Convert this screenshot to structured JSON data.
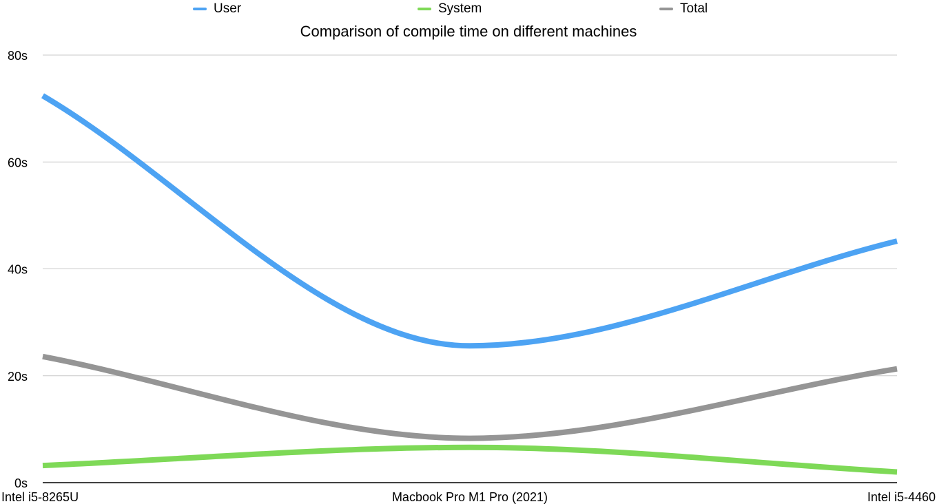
{
  "chart_data": {
    "type": "line",
    "title": "Comparison of compile time on different machines",
    "xlabel": "",
    "ylabel": "",
    "categories": [
      "Intel i5-8265U",
      "Macbook Pro M1 Pro (2021)",
      "Intel i5-4460"
    ],
    "y_ticks": [
      "0s",
      "20s",
      "40s",
      "60s",
      "80s"
    ],
    "y_tick_values": [
      0,
      20,
      40,
      60,
      80
    ],
    "ylim": [
      0,
      80
    ],
    "grid": true,
    "legend_position": "top",
    "smooth": true,
    "series": [
      {
        "name": "User",
        "color": "#4da3f3",
        "values": [
          72.4,
          25.6,
          45.2
        ]
      },
      {
        "name": "System",
        "color": "#7ed957",
        "values": [
          3.2,
          6.6,
          2.0
        ]
      },
      {
        "name": "Total",
        "color": "#959595",
        "values": [
          23.6,
          8.3,
          21.3
        ]
      }
    ]
  }
}
